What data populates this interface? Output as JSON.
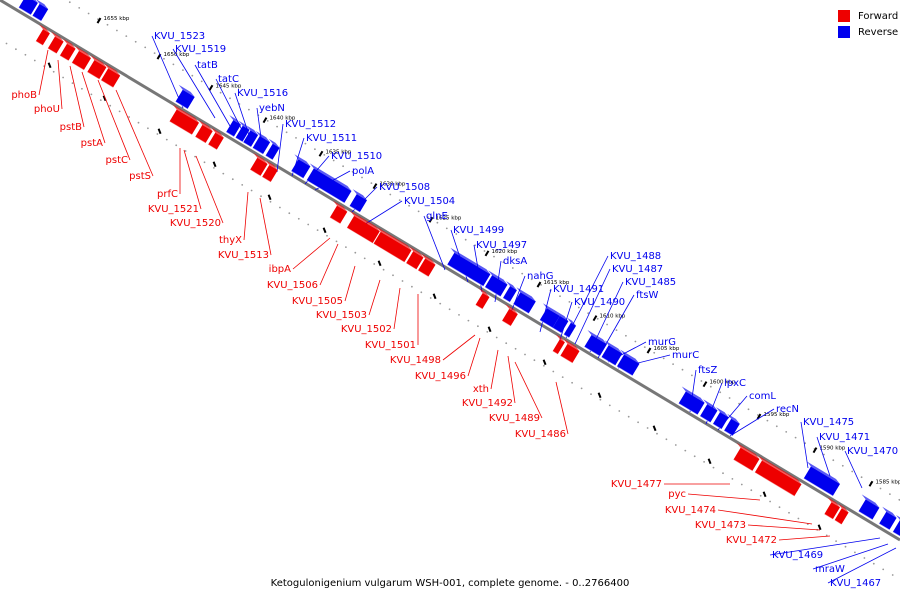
{
  "caption": "Ketogulonigenium vulgarum WSH-001, complete genome. - 0..2766400",
  "legend": [
    {
      "label": "Forward",
      "color": "#ee0000"
    },
    {
      "label": "Reverse",
      "color": "#0000ee"
    }
  ],
  "colors": {
    "forward": "#ee0000",
    "reverse": "#0000ee",
    "backbone": "#777777"
  },
  "ticks": [
    "1655 kbp",
    "1650 kbp",
    "1645 kbp",
    "1640 kbp",
    "1635 kbp",
    "1630 kbp",
    "1625 kbp",
    "1620 kbp",
    "1615 kbp",
    "1610 kbp",
    "1605 kbp",
    "1600 kbp",
    "1595 kbp",
    "1590 kbp",
    "1585 kbp"
  ],
  "reverse_labels": [
    "KVU_1523",
    "KVU_1519",
    "tatB",
    "tatC",
    "KVU_1516",
    "yebN",
    "KVU_1512",
    "KVU_1511",
    "KVU_1510",
    "polA",
    "KVU_1508",
    "KVU_1504",
    "glnE",
    "KVU_1499",
    "KVU_1497",
    "dksA",
    "nahG",
    "KVU_1491",
    "KVU_1490",
    "KVU_1488",
    "KVU_1487",
    "KVU_1485",
    "ftsW",
    "murG",
    "murC",
    "ftsZ",
    "lpxC",
    "comL",
    "recN",
    "KVU_1475",
    "KVU_1471",
    "KVU_1470",
    "KVU_1469",
    "mraW",
    "KVU_1467"
  ],
  "forward_labels": [
    "phoB",
    "phoU",
    "pstB",
    "pstA",
    "pstC",
    "pstS",
    "prfC",
    "KVU_1521",
    "KVU_1520",
    "thyX",
    "KVU_1513",
    "ibpA",
    "KVU_1506",
    "KVU_1505",
    "KVU_1503",
    "KVU_1502",
    "KVU_1501",
    "KVU_1498",
    "KVU_1496",
    "xth",
    "KVU_1492",
    "KVU_1489",
    "KVU_1486",
    "KVU_1477",
    "pyc",
    "KVU_1474",
    "KVU_1473",
    "KVU_1472"
  ]
}
